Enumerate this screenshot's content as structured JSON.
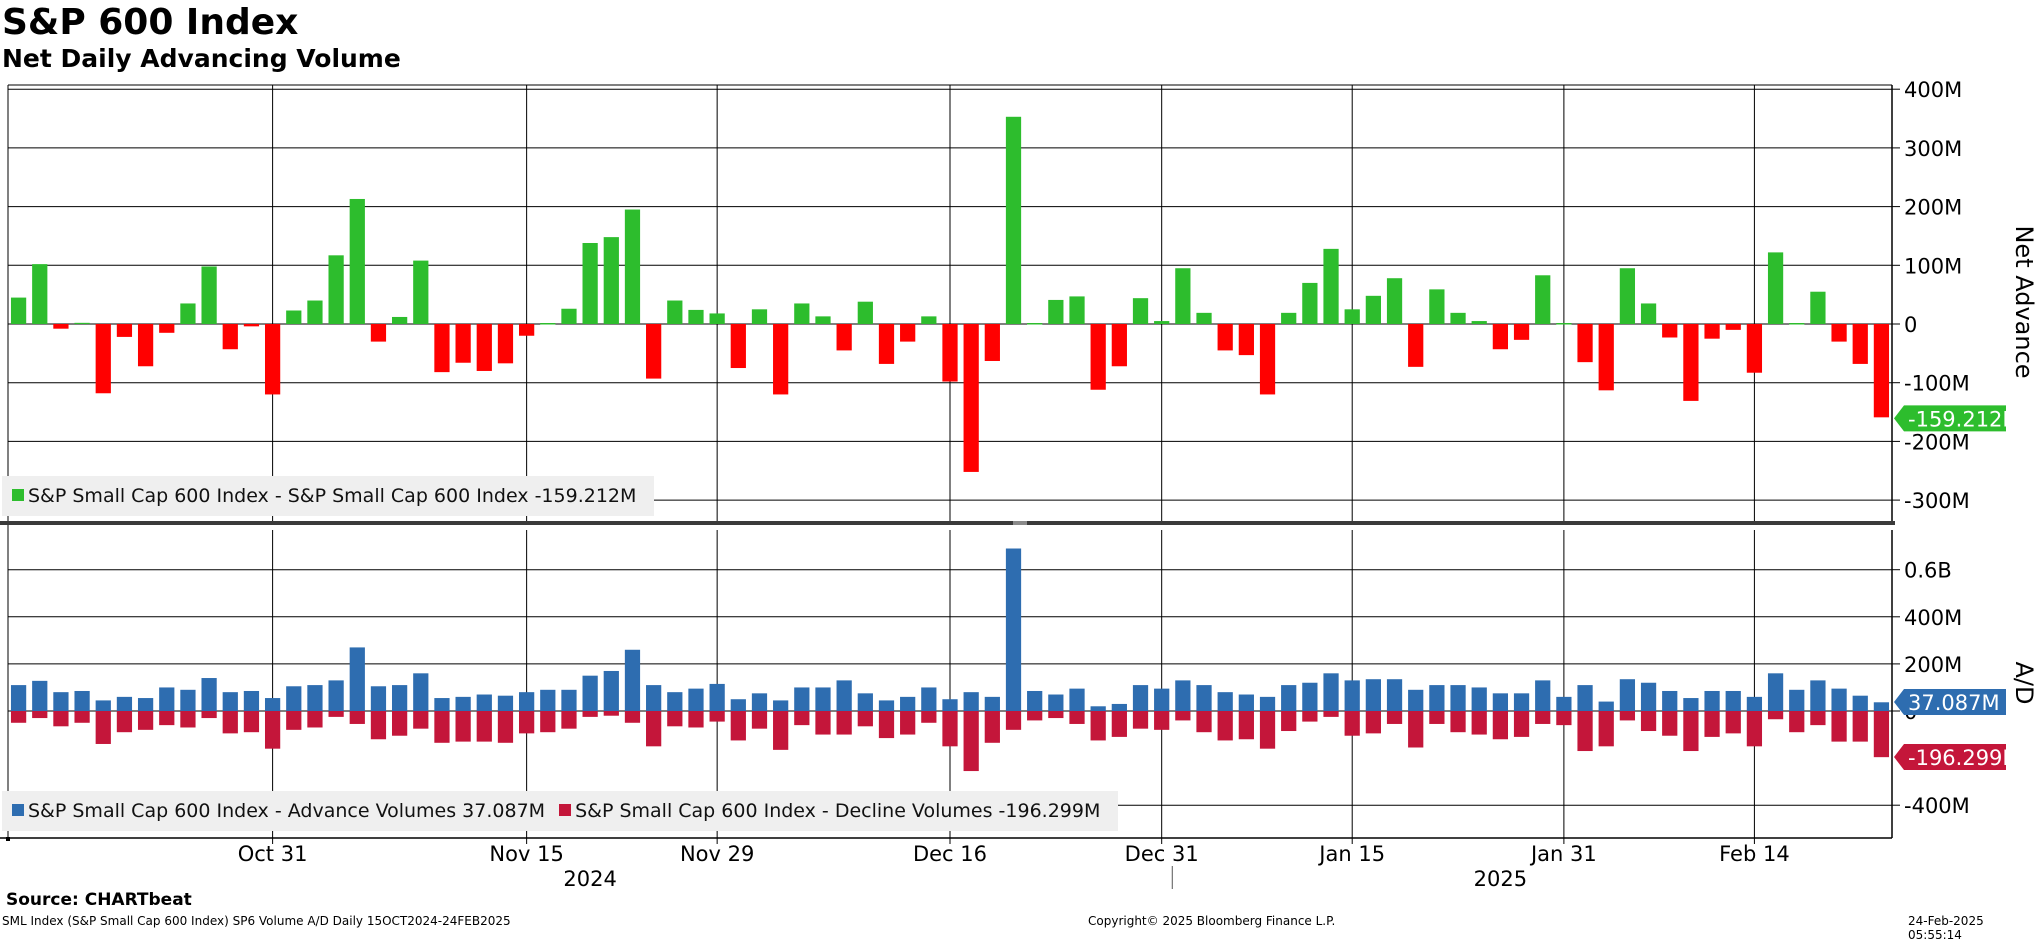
{
  "header": {
    "title": "S&P 600 Index",
    "subtitle": "Net Daily Advancing Volume"
  },
  "footer": {
    "source": "Source: CHARTbeat",
    "description": "SML Index (S&P Small Cap 600 Index) SP6 Volume A/D  Daily 15OCT2024-24FEB2025",
    "copyright": "Copyright© 2025 Bloomberg Finance L.P.",
    "timestamp": "24-Feb-2025 05:55:14"
  },
  "colors": {
    "positive": "#2dbd2d",
    "negative": "#ff0000",
    "advance": "#2e6db0",
    "decline": "#c4163a",
    "value_tag_green": "#2dbd2d",
    "value_tag_blue": "#2e6db0",
    "value_tag_red": "#c4163a"
  },
  "chart_data": [
    {
      "type": "bar",
      "panel": "top",
      "ylabel": "Net Advance",
      "ylim": [
        -350,
        410
      ],
      "y_unit": "M",
      "y_ticks": [
        "400M",
        "300M",
        "200M",
        "100M",
        "0",
        "-100M",
        "-200M",
        "-300M"
      ],
      "y_tick_values": [
        400,
        300,
        200,
        100,
        0,
        -100,
        -200,
        -300
      ],
      "last_value_label": "-159.212M",
      "legend": [
        "S&P Small Cap 600 Index - S&P Small Cap 600 Index -159.212M"
      ],
      "grid": true,
      "series": [
        {
          "name": "S&P Small Cap 600 Index - S&P Small Cap 600 Index",
          "values": [
            45,
            102,
            -8,
            2,
            -118,
            -22,
            -72,
            -15,
            35,
            98,
            -43,
            -4,
            -120,
            23,
            40,
            117,
            213,
            -30,
            12,
            108,
            -82,
            -66,
            -80,
            -67,
            -20,
            0,
            26,
            138,
            148,
            195,
            -93,
            40,
            24,
            18,
            -75,
            25,
            -120,
            35,
            13,
            -45,
            38,
            -68,
            -30,
            13,
            -98,
            -252,
            -63,
            353,
            0,
            41,
            47,
            -112,
            -72,
            44,
            5,
            95,
            19,
            -45,
            -53,
            -120,
            19,
            70,
            128,
            25,
            48,
            78,
            -73,
            59,
            19,
            5,
            -43,
            -27,
            83,
            0,
            -65,
            -113,
            95,
            35,
            -23,
            -131,
            -25,
            -10,
            -83,
            122,
            0,
            55,
            -30,
            -68,
            -159
          ]
        }
      ]
    },
    {
      "type": "bar",
      "panel": "bottom",
      "ylabel": "A/D",
      "ylim": [
        -460,
        680
      ],
      "y_unit": "M",
      "y_ticks": [
        "0.6B",
        "400M",
        "200M",
        "0",
        "-400M"
      ],
      "y_tick_values": [
        600,
        400,
        200,
        0,
        -400
      ],
      "last_value_labels": [
        "37.087M",
        "-196.299M"
      ],
      "legend": [
        "S&P Small Cap 600 Index - Advance Volumes 37.087M",
        "S&P Small Cap 600 Index - Decline Volumes -196.299M"
      ],
      "grid": true,
      "series": [
        {
          "name": "S&P Small Cap 600 Index - Advance Volumes",
          "values": [
            110,
            128,
            80,
            85,
            45,
            60,
            55,
            100,
            90,
            140,
            80,
            85,
            55,
            105,
            110,
            130,
            270,
            105,
            110,
            160,
            55,
            60,
            70,
            65,
            80,
            90,
            90,
            150,
            170,
            260,
            110,
            80,
            95,
            115,
            50,
            75,
            45,
            100,
            100,
            130,
            75,
            45,
            60,
            100,
            50,
            80,
            60,
            690,
            85,
            70,
            95,
            20,
            30,
            110,
            95,
            130,
            110,
            80,
            70,
            60,
            110,
            120,
            160,
            130,
            135,
            135,
            90,
            110,
            110,
            100,
            75,
            75,
            130,
            60,
            110,
            40,
            135,
            120,
            85,
            55,
            85,
            85,
            60,
            160,
            90,
            130,
            95,
            65,
            37
          ]
        },
        {
          "name": "S&P Small Cap 600 Index - Decline Volumes",
          "values": [
            -50,
            -30,
            -65,
            -50,
            -140,
            -90,
            -80,
            -60,
            -70,
            -30,
            -95,
            -90,
            -160,
            -80,
            -70,
            -25,
            -55,
            -120,
            -105,
            -75,
            -135,
            -130,
            -130,
            -135,
            -95,
            -90,
            -75,
            -25,
            -20,
            -50,
            -150,
            -65,
            -70,
            -45,
            -125,
            -75,
            -165,
            -60,
            -100,
            -100,
            -65,
            -115,
            -100,
            -50,
            -150,
            -255,
            -135,
            -80,
            -40,
            -30,
            -55,
            -125,
            -110,
            -75,
            -80,
            -40,
            -90,
            -125,
            -120,
            -160,
            -85,
            -45,
            -25,
            -105,
            -95,
            -55,
            -155,
            -55,
            -90,
            -100,
            -120,
            -110,
            -55,
            -60,
            -170,
            -150,
            -40,
            -85,
            -105,
            -170,
            -110,
            -95,
            -150,
            -35,
            -90,
            -60,
            -130,
            -130,
            -196
          ]
        }
      ]
    },
    {
      "type": "axis",
      "panel": "x-axis",
      "x_ticks": [
        "Oct 31",
        "Nov 15",
        "Nov 29",
        "Dec 16",
        "Dec 31",
        "Jan 15",
        "Jan 31",
        "Feb 14"
      ],
      "x_tick_indices": [
        12,
        24,
        33,
        44,
        54,
        63,
        73,
        82
      ],
      "years": [
        "2024",
        "2025"
      ],
      "year_indices": [
        27,
        70
      ],
      "year_break_index": 54.5
    }
  ]
}
